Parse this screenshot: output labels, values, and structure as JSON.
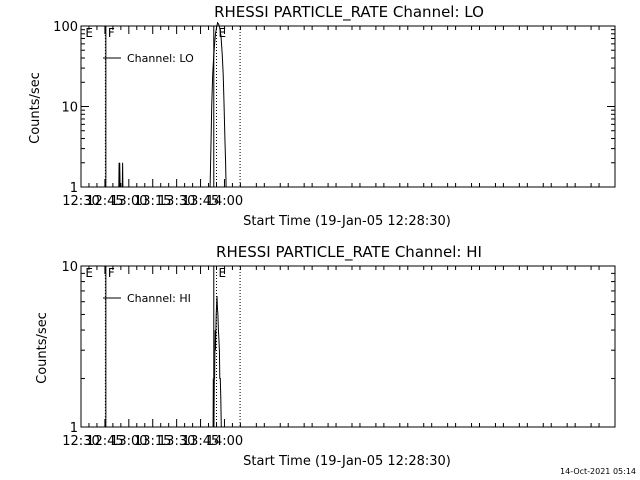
{
  "footer": {
    "timestamp": "14-Oct-2021 05:14"
  },
  "chart_data": [
    {
      "type": "line",
      "title": "RHESSI PARTICLE_RATE Channel: LO",
      "xlabel": "Start Time (19-Jan-05 12:28:30)",
      "ylabel": "Counts/sec",
      "yscale": "log",
      "ylim": [
        1,
        100
      ],
      "xlim_minutes": [
        750,
        1085
      ],
      "y_ticks": [
        {
          "v": 1,
          "label": "1"
        },
        {
          "v": 10,
          "label": "10"
        },
        {
          "v": 100,
          "label": "100"
        }
      ],
      "x_ticks": [
        {
          "t": 750,
          "label": "12:30"
        },
        {
          "t": 765,
          "label": "12:45"
        },
        {
          "t": 780,
          "label": "13:00"
        },
        {
          "t": 795,
          "label": "13:15"
        },
        {
          "t": 810,
          "label": "13:30"
        },
        {
          "t": 825,
          "label": "13:45"
        },
        {
          "t": 840,
          "label": "14:00"
        }
      ],
      "legend": {
        "label": "Channel: LO",
        "position": "top-left"
      },
      "grid": false,
      "markers": [
        {
          "t": 751.5,
          "label": "E",
          "style": "none"
        },
        {
          "t": 765.6,
          "label": "F",
          "style": "solid"
        },
        {
          "t": 765.3,
          "label": "",
          "style": "dotted"
        },
        {
          "t": 833.3,
          "label": "",
          "style": "solid"
        },
        {
          "t": 835.0,
          "label": "E",
          "style": "dotted"
        },
        {
          "t": 849.8,
          "label": "",
          "style": "dotted"
        }
      ],
      "series": [
        {
          "name": "Channel: LO",
          "points": [
            [
              773.7,
              1
            ],
            [
              773.9,
              2
            ],
            [
              774.1,
              1
            ],
            [
              774.3,
              2
            ],
            [
              774.5,
              1
            ],
            [
              775.9,
              1
            ],
            [
              776.1,
              2
            ],
            [
              776.3,
              1
            ],
            [
              831.0,
              1
            ],
            [
              831.3,
              2
            ],
            [
              831.6,
              4
            ],
            [
              832.0,
              10
            ],
            [
              832.6,
              25
            ],
            [
              833.2,
              40
            ],
            [
              833.8,
              60
            ],
            [
              834.4,
              80
            ],
            [
              835.0,
              95
            ],
            [
              835.7,
              110
            ],
            [
              836.4,
              105
            ],
            [
              837.0,
              95
            ],
            [
              837.8,
              75
            ],
            [
              838.6,
              45
            ],
            [
              839.2,
              25
            ],
            [
              839.8,
              10
            ],
            [
              840.3,
              4
            ],
            [
              840.7,
              2
            ],
            [
              841.0,
              1
            ]
          ]
        }
      ]
    },
    {
      "type": "line",
      "title": "RHESSI PARTICLE_RATE Channel: HI",
      "xlabel": "Start Time (19-Jan-05 12:28:30)",
      "ylabel": "Counts/sec",
      "yscale": "log",
      "ylim": [
        1,
        10
      ],
      "xlim_minutes": [
        750,
        1085
      ],
      "y_ticks": [
        {
          "v": 1,
          "label": "1"
        },
        {
          "v": 10,
          "label": "10"
        }
      ],
      "x_ticks": [
        {
          "t": 750,
          "label": "12:30"
        },
        {
          "t": 765,
          "label": "12:45"
        },
        {
          "t": 780,
          "label": "13:00"
        },
        {
          "t": 795,
          "label": "13:15"
        },
        {
          "t": 810,
          "label": "13:30"
        },
        {
          "t": 825,
          "label": "13:45"
        },
        {
          "t": 840,
          "label": "14:00"
        }
      ],
      "legend": {
        "label": "Channel: HI",
        "position": "top-left"
      },
      "grid": false,
      "markers": [
        {
          "t": 751.5,
          "label": "E",
          "style": "none"
        },
        {
          "t": 765.6,
          "label": "F",
          "style": "solid"
        },
        {
          "t": 765.3,
          "label": "",
          "style": "dotted"
        },
        {
          "t": 833.3,
          "label": "",
          "style": "solid"
        },
        {
          "t": 835.0,
          "label": "E",
          "style": "dotted"
        },
        {
          "t": 849.8,
          "label": "",
          "style": "dotted"
        }
      ],
      "series": [
        {
          "name": "Channel: HI",
          "points": [
            [
              832.9,
              1
            ],
            [
              833.0,
              2
            ],
            [
              833.1,
              1
            ],
            [
              833.3,
              2
            ],
            [
              833.4,
              1
            ],
            [
              833.6,
              2
            ],
            [
              833.8,
              2
            ],
            [
              834.0,
              3
            ],
            [
              834.2,
              4
            ],
            [
              834.4,
              3
            ],
            [
              834.6,
              4
            ],
            [
              834.8,
              5
            ],
            [
              835.0,
              5.5
            ],
            [
              835.3,
              6.5
            ],
            [
              835.6,
              5.5
            ],
            [
              835.9,
              5
            ],
            [
              836.2,
              4
            ],
            [
              836.5,
              3.5
            ],
            [
              836.8,
              3
            ],
            [
              837.1,
              2
            ],
            [
              837.4,
              2
            ],
            [
              837.7,
              1.5
            ],
            [
              838.0,
              1
            ]
          ]
        }
      ]
    }
  ]
}
